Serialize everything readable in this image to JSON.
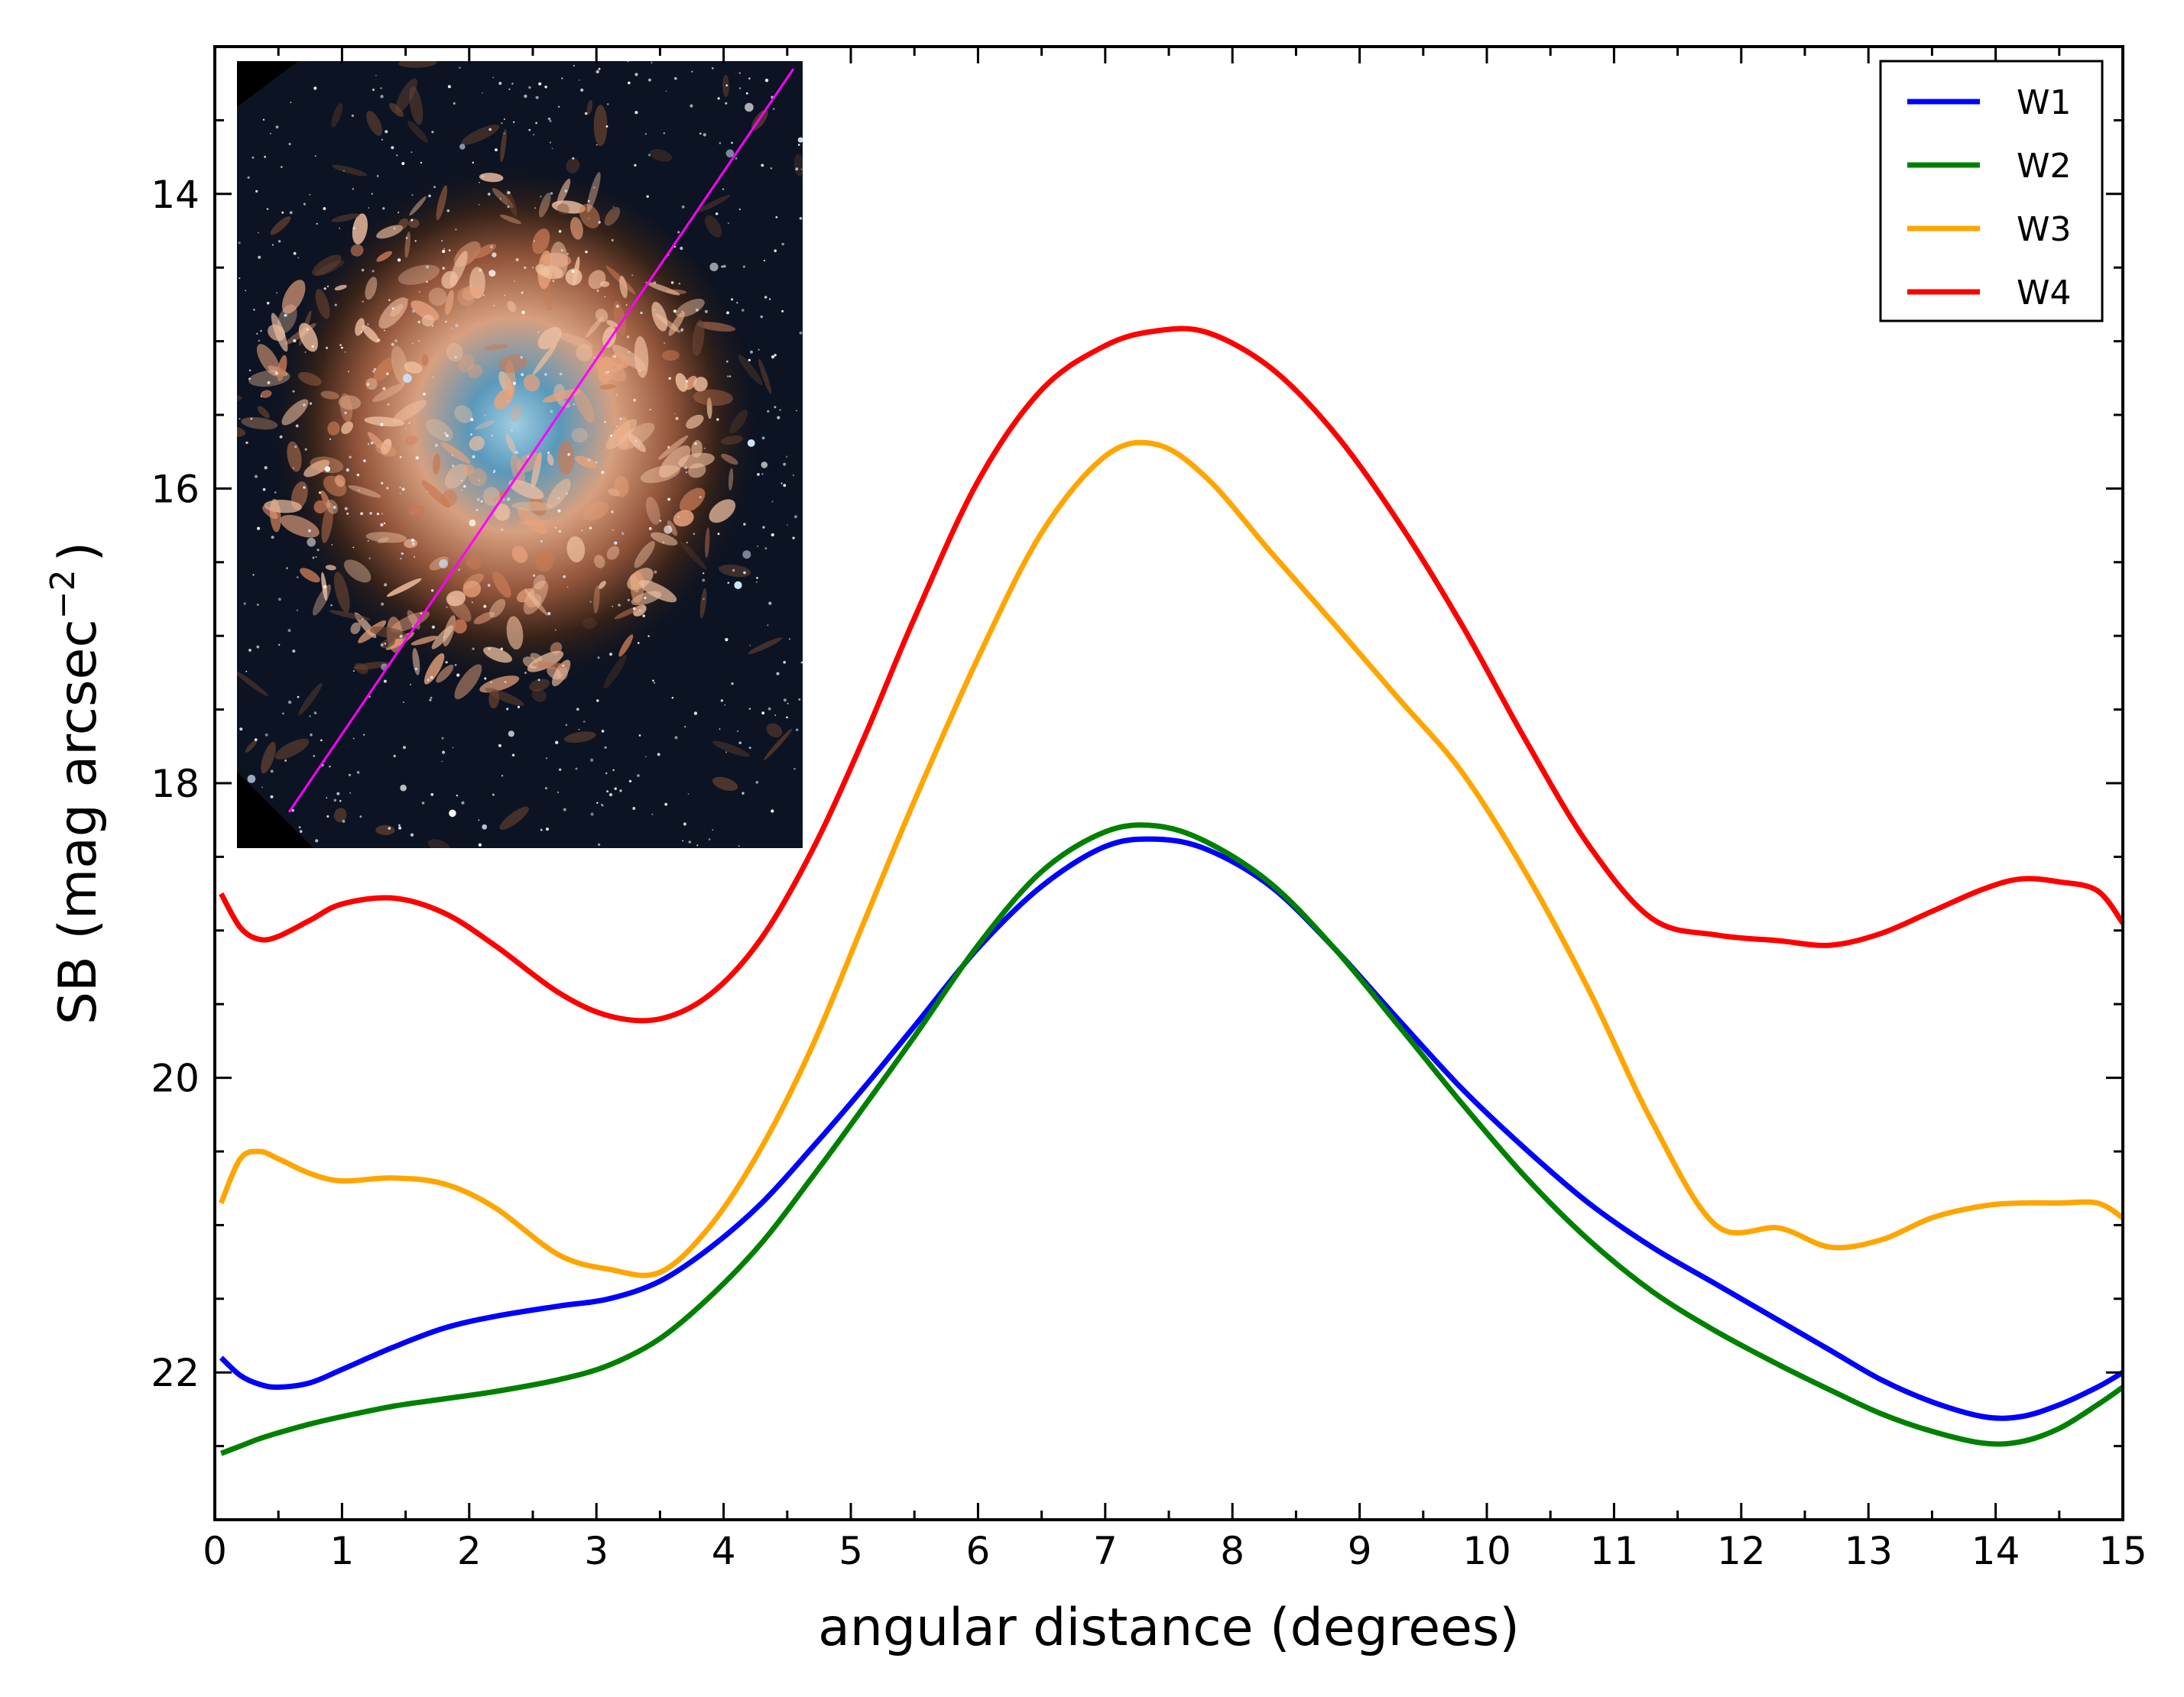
{
  "chart_data": {
    "type": "line",
    "xlabel": "angular distance (degrees)",
    "ylabel": "SB (mag arcsec",
    "ylabel_superscript": "−2",
    "ylabel_close": ")",
    "xlim": [
      0,
      15
    ],
    "ylim": [
      23.0,
      13.0
    ],
    "y_inverted": true,
    "grid": false,
    "legend_position": "top-right",
    "x_ticks": [
      "0",
      "1",
      "2",
      "3",
      "4",
      "5",
      "6",
      "7",
      "8",
      "9",
      "10",
      "11",
      "12",
      "13",
      "14",
      "15"
    ],
    "y_ticks": [
      "14",
      "16",
      "18",
      "20",
      "22"
    ],
    "x": [
      0.05,
      0.2,
      0.35,
      0.5,
      0.75,
      1.0,
      1.4,
      1.8,
      2.2,
      2.7,
      3.1,
      3.5,
      3.9,
      4.3,
      4.7,
      5.1,
      5.5,
      6.0,
      6.5,
      7.0,
      7.4,
      7.8,
      8.3,
      8.8,
      9.3,
      9.8,
      10.3,
      10.8,
      11.3,
      11.8,
      12.3,
      12.7,
      13.1,
      13.5,
      13.9,
      14.2,
      14.5,
      14.8,
      15.0
    ],
    "series": [
      {
        "name": "W1",
        "color": "#0000ff",
        "values": [
          21.9,
          22.02,
          22.08,
          22.1,
          22.07,
          21.98,
          21.83,
          21.7,
          21.62,
          21.55,
          21.5,
          21.38,
          21.15,
          20.85,
          20.47,
          20.07,
          19.65,
          19.12,
          18.7,
          18.43,
          18.38,
          18.45,
          18.7,
          19.12,
          19.6,
          20.07,
          20.48,
          20.85,
          21.15,
          21.4,
          21.65,
          21.85,
          22.05,
          22.2,
          22.3,
          22.3,
          22.22,
          22.1,
          22.0
        ]
      },
      {
        "name": "W2",
        "color": "#008000",
        "values": [
          22.55,
          22.5,
          22.45,
          22.41,
          22.35,
          22.3,
          22.23,
          22.18,
          22.13,
          22.05,
          21.95,
          21.77,
          21.48,
          21.12,
          20.67,
          20.2,
          19.72,
          19.1,
          18.6,
          18.33,
          18.29,
          18.4,
          18.68,
          19.12,
          19.64,
          20.17,
          20.67,
          21.1,
          21.45,
          21.72,
          21.95,
          22.12,
          22.28,
          22.4,
          22.48,
          22.47,
          22.38,
          22.22,
          22.1
        ]
      },
      {
        "name": "W3",
        "color": "#ffa500",
        "values": [
          20.85,
          20.55,
          20.5,
          20.55,
          20.65,
          20.7,
          20.68,
          20.72,
          20.88,
          21.2,
          21.3,
          21.32,
          21.0,
          20.47,
          19.78,
          18.95,
          18.12,
          17.15,
          16.3,
          15.78,
          15.7,
          15.93,
          16.43,
          16.92,
          17.42,
          17.92,
          18.6,
          19.4,
          20.3,
          21.0,
          21.02,
          21.15,
          21.1,
          20.95,
          20.87,
          20.85,
          20.85,
          20.85,
          20.95
        ]
      },
      {
        "name": "W4",
        "color": "#ff0000",
        "values": [
          18.75,
          18.98,
          19.06,
          19.04,
          18.93,
          18.82,
          18.78,
          18.88,
          19.1,
          19.42,
          19.58,
          19.6,
          19.43,
          19.05,
          18.45,
          17.7,
          16.88,
          15.95,
          15.33,
          15.03,
          14.93,
          14.94,
          15.18,
          15.62,
          16.22,
          16.92,
          17.7,
          18.42,
          18.92,
          19.03,
          19.07,
          19.1,
          19.02,
          18.87,
          18.72,
          18.65,
          18.67,
          18.73,
          18.95
        ]
      }
    ],
    "inset_image": {
      "description_icon": "nebula-image",
      "sky_color": "#0c1322",
      "nebula_color": "#e2a784",
      "core_color": "#7fc4e3",
      "cut_line_color": "#ff00ff"
    }
  }
}
